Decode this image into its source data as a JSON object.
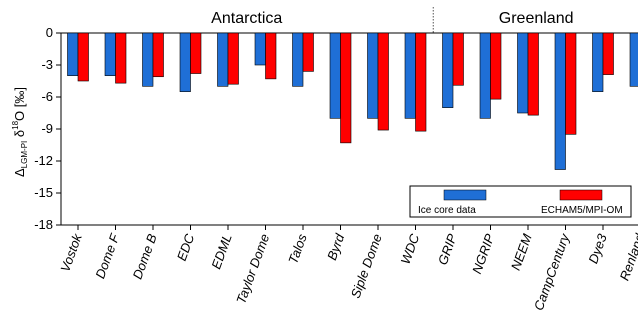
{
  "chart_data": {
    "type": "bar",
    "ylabel": {
      "main": "Δ",
      "subscript": "LGM-PI",
      "mid": " δ",
      "superscript": "18",
      "tail": "O [‰]"
    },
    "ylim": [
      -18,
      0
    ],
    "yticks": [
      0,
      -3,
      -6,
      -9,
      -12,
      -15,
      -18
    ],
    "ytick_labels": [
      "0",
      "-3",
      "-6",
      "-9",
      "-12",
      "-15",
      "-18"
    ],
    "regions": [
      {
        "label": "Antarctica",
        "first_index": 0,
        "last_index": 9
      },
      {
        "label": "Greenland",
        "first_index": 10,
        "last_index": 15
      }
    ],
    "categories": [
      "Vostok",
      "Dome F",
      "Dome B",
      "EDC",
      "EDML",
      "Taylor Dome",
      "Talos",
      "Byrd",
      "Siple Dome",
      "WDC",
      "GRIP",
      "NGRIP",
      "NEEM",
      "CampCentury",
      "Dye3",
      "Renland"
    ],
    "series": [
      {
        "name": "Ice core data",
        "color": "#1f6fd6",
        "values": [
          -4.0,
          -4.0,
          -5.0,
          -5.5,
          -5.0,
          -3.0,
          -5.0,
          -8.0,
          -8.0,
          -8.0,
          -7.0,
          -8.0,
          -7.5,
          -12.8,
          -5.5,
          -5.0
        ]
      },
      {
        "name": "ECHAM5/MPI-OM",
        "color": "#ff0000",
        "values": [
          -4.5,
          -4.7,
          -4.1,
          -3.8,
          -4.8,
          -4.3,
          -3.6,
          -10.3,
          -9.1,
          -9.2,
          -4.9,
          -6.2,
          -7.7,
          -9.5,
          -3.9,
          null
        ]
      }
    ],
    "legend": {
      "placement": "bottom-right"
    },
    "grid": false
  }
}
